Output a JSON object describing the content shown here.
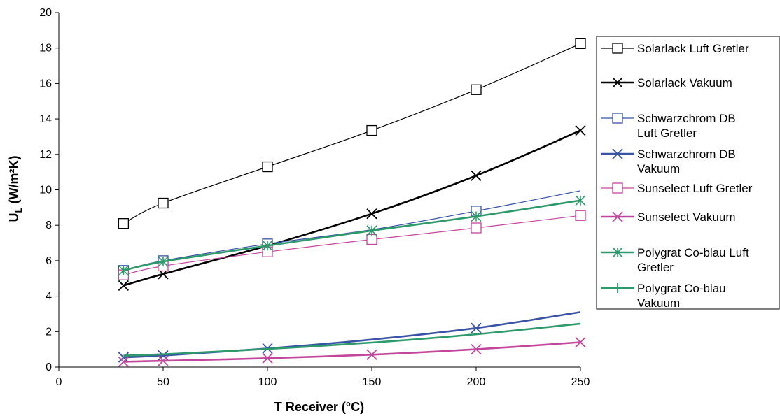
{
  "chart_data": {
    "type": "line",
    "title": "",
    "xlabel": "T Receiver (°C)",
    "ylabel_main": "U",
    "ylabel_sub": "L",
    "ylabel_rest": " (W/m²K)",
    "xlim": [
      0,
      250
    ],
    "ylim": [
      0,
      20
    ],
    "xticks": [
      0,
      50,
      100,
      150,
      200,
      250
    ],
    "yticks": [
      0,
      2,
      4,
      6,
      8,
      10,
      12,
      14,
      16,
      18,
      20
    ],
    "grid": false,
    "legend_position": "right",
    "series": [
      {
        "name": "Solarlack Luft Gretler",
        "color": "#000000",
        "marker": "square",
        "width": "thin",
        "x": [
          31,
          50,
          100,
          150,
          200,
          250
        ],
        "y": [
          8.1,
          9.25,
          11.3,
          13.35,
          15.65,
          18.25
        ],
        "markers_at": [
          31,
          50,
          100,
          150,
          200,
          250
        ]
      },
      {
        "name": "Solarlack Vakuum",
        "color": "#000000",
        "marker": "x",
        "width": "thick",
        "x": [
          31,
          50,
          100,
          150,
          200,
          250
        ],
        "y": [
          4.6,
          5.25,
          6.85,
          8.65,
          10.8,
          13.35
        ],
        "markers_at": [
          31,
          50,
          100,
          150,
          200,
          250
        ]
      },
      {
        "name": "Schwarzchrom DB Luft Gretler",
        "color": "#3a53a4",
        "marker": "square",
        "width": "thin",
        "x": [
          31,
          50,
          100,
          150,
          200,
          250
        ],
        "y": [
          5.45,
          6.0,
          6.95,
          7.75,
          8.8,
          9.95
        ],
        "markers_at": [
          31,
          50,
          100,
          200
        ]
      },
      {
        "name": "Schwarzchrom DB Vakuum",
        "color": "#3a53a4",
        "marker": "x",
        "width": "thick",
        "x": [
          31,
          50,
          100,
          150,
          200,
          250
        ],
        "y": [
          0.55,
          0.65,
          1.05,
          1.55,
          2.2,
          3.1
        ],
        "markers_at": [
          31,
          50,
          100,
          200
        ]
      },
      {
        "name": "Sunselect Luft Gretler",
        "color": "#c2479b",
        "marker": "square",
        "width": "thin",
        "x": [
          31,
          50,
          100,
          150,
          200,
          250
        ],
        "y": [
          5.2,
          5.7,
          6.5,
          7.2,
          7.85,
          8.55
        ],
        "markers_at": [
          31,
          50,
          100,
          150,
          200,
          250
        ]
      },
      {
        "name": "Sunselect Vakuum",
        "color": "#c2479b",
        "marker": "x",
        "width": "thick",
        "x": [
          31,
          50,
          100,
          150,
          200,
          250
        ],
        "y": [
          0.3,
          0.35,
          0.5,
          0.7,
          1.0,
          1.4
        ],
        "markers_at": [
          31,
          50,
          100,
          150,
          200,
          250
        ]
      },
      {
        "name": "Polygrat Co-blau Luft Gretler",
        "color": "#2e9a6c",
        "marker": "star",
        "width": "thick",
        "x": [
          31,
          50,
          100,
          150,
          200,
          250
        ],
        "y": [
          5.45,
          5.95,
          6.85,
          7.7,
          8.5,
          9.4
        ],
        "markers_at": [
          31,
          50,
          100,
          150,
          200,
          250
        ]
      },
      {
        "name": "Polygrat Co-blau Vakuum",
        "color": "#2e9a6c",
        "marker": "plus",
        "width": "thick",
        "x": [
          31,
          50,
          100,
          150,
          200,
          250
        ],
        "y": [
          0.65,
          0.72,
          1.02,
          1.38,
          1.85,
          2.45
        ],
        "markers_at": []
      }
    ]
  }
}
